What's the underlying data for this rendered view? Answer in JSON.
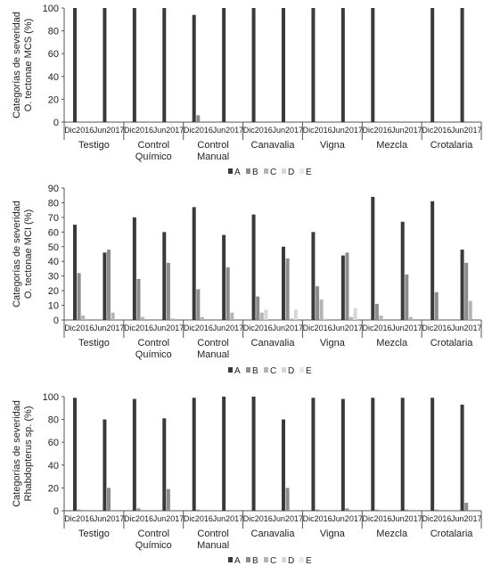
{
  "colors": {
    "A": "#3a3a3a",
    "B": "#8c8c8c",
    "C": "#b4b4b4",
    "D": "#d6d6d6",
    "E": "#e9e9e9",
    "axis": "#555555",
    "text": "#222222"
  },
  "chart_data": [
    {
      "type": "bar",
      "ylabel_line1": "Categorías de severidad",
      "ylabel_line2": "O. tectonae MCS (%)",
      "ylim": [
        0,
        100
      ],
      "yticks": [
        0,
        20,
        40,
        60,
        80,
        100
      ],
      "treatments": [
        "Testigo",
        "Control\nQuímico",
        "Control\nManual",
        "Canavalia",
        "Vigna",
        "Mezcla",
        "Crotalaria"
      ],
      "periods": [
        "Dic2016",
        "Jun2017"
      ],
      "legend": [
        "A",
        "B",
        "C",
        "D",
        "E"
      ],
      "values": [
        [
          [
            100,
            0,
            0,
            0,
            0
          ],
          [
            100,
            0,
            0,
            0,
            0
          ]
        ],
        [
          [
            100,
            0,
            0,
            0,
            0
          ],
          [
            100,
            0,
            0,
            0,
            0
          ]
        ],
        [
          [
            94,
            6,
            0,
            0,
            0
          ],
          [
            100,
            0,
            0,
            0,
            0
          ]
        ],
        [
          [
            100,
            0,
            0,
            0,
            0
          ],
          [
            100,
            0,
            0,
            0,
            0
          ]
        ],
        [
          [
            100,
            0,
            0,
            0,
            0
          ],
          [
            100,
            0,
            0,
            0,
            0
          ]
        ],
        [
          [
            100,
            0,
            0,
            0,
            0
          ],
          [
            0,
            0,
            0,
            0,
            0
          ]
        ],
        [
          [
            100,
            0,
            0,
            0,
            0
          ],
          [
            100,
            0,
            0,
            0,
            0
          ]
        ]
      ]
    },
    {
      "type": "bar",
      "ylabel_line1": "Categorías de severidad",
      "ylabel_line2": "O. tectonae MCI (%)",
      "ylim": [
        0,
        90
      ],
      "yticks": [
        0,
        10,
        20,
        30,
        40,
        50,
        60,
        70,
        80,
        90
      ],
      "treatments": [
        "Testigo",
        "Control\nQuímico",
        "Control\nManual",
        "Canavalia",
        "Vigna",
        "Mezcla",
        "Crotalaria"
      ],
      "periods": [
        "Dic2016",
        "Jun2017"
      ],
      "legend": [
        "A",
        "B",
        "C",
        "D",
        "E"
      ],
      "values": [
        [
          [
            65,
            32,
            3,
            0,
            0
          ],
          [
            46,
            48,
            5,
            0,
            0
          ]
        ],
        [
          [
            70,
            28,
            2,
            0,
            0
          ],
          [
            60,
            39,
            1,
            0,
            0
          ]
        ],
        [
          [
            77,
            21,
            2,
            0,
            0
          ],
          [
            58,
            36,
            5,
            0,
            0
          ]
        ],
        [
          [
            72,
            16,
            5,
            7,
            0
          ],
          [
            50,
            42,
            1,
            7,
            0
          ]
        ],
        [
          [
            60,
            23,
            14,
            1,
            0
          ],
          [
            44,
            46,
            2,
            8,
            0
          ]
        ],
        [
          [
            84,
            11,
            3,
            0,
            0
          ],
          [
            67,
            31,
            2,
            0,
            0
          ]
        ],
        [
          [
            81,
            19,
            0,
            0,
            0
          ],
          [
            48,
            39,
            13,
            0,
            0
          ]
        ]
      ]
    },
    {
      "type": "bar",
      "ylabel_line1": "Categorías de severidad",
      "ylabel_line2": "Rhabdopterus sp. (%)",
      "ylim": [
        0,
        100
      ],
      "yticks": [
        0,
        20,
        40,
        60,
        80,
        100
      ],
      "treatments": [
        "Testigo",
        "Control\nQuímico",
        "Control\nManual",
        "Canavalia",
        "Vigna",
        "Mezcla",
        "Crotalaria"
      ],
      "periods": [
        "Dic2016",
        "Jun2017"
      ],
      "legend": [
        "A",
        "B",
        "C",
        "D",
        "E"
      ],
      "values": [
        [
          [
            99,
            1,
            0,
            0,
            0
          ],
          [
            80,
            20,
            0,
            0,
            0
          ]
        ],
        [
          [
            98,
            2,
            0,
            0,
            0
          ],
          [
            81,
            19,
            0,
            0,
            0
          ]
        ],
        [
          [
            99,
            1,
            0,
            0,
            0
          ],
          [
            100,
            0,
            0,
            0,
            0
          ]
        ],
        [
          [
            100,
            0,
            0,
            0,
            0
          ],
          [
            80,
            20,
            0,
            0,
            0
          ]
        ],
        [
          [
            99,
            1,
            0,
            0,
            0
          ],
          [
            98,
            2,
            0,
            0,
            0
          ]
        ],
        [
          [
            99,
            1,
            0,
            0,
            0
          ],
          [
            99,
            1,
            0,
            0,
            0
          ]
        ],
        [
          [
            99,
            1,
            0,
            0,
            0
          ],
          [
            93,
            7,
            0,
            0,
            0
          ]
        ]
      ]
    }
  ]
}
